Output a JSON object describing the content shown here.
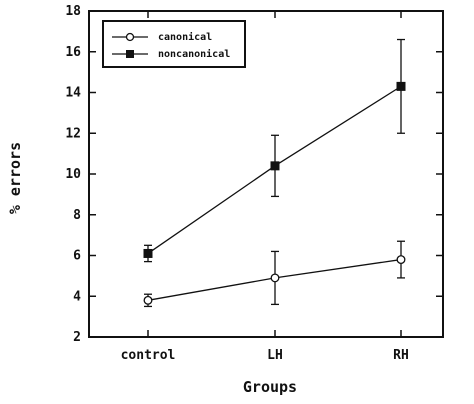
{
  "chart_data": {
    "type": "line",
    "categories": [
      "control",
      "LH",
      "RH"
    ],
    "xlabel": "Groups",
    "ylabel": "% errors",
    "ylim": [
      2,
      18
    ],
    "yticks": [
      2,
      4,
      6,
      8,
      10,
      12,
      14,
      16,
      18
    ],
    "grid": false,
    "legend_position": "top-left",
    "series": [
      {
        "name": "canonical",
        "marker": "open-circle",
        "values": [
          3.8,
          4.9,
          5.8
        ],
        "error": [
          0.3,
          1.3,
          0.9
        ]
      },
      {
        "name": "noncanonical",
        "marker": "filled-square",
        "values": [
          6.1,
          10.4,
          14.3
        ],
        "error": [
          0.4,
          1.5,
          2.3
        ]
      }
    ],
    "colors": {
      "ink": "#111111",
      "background": "#ffffff"
    }
  }
}
